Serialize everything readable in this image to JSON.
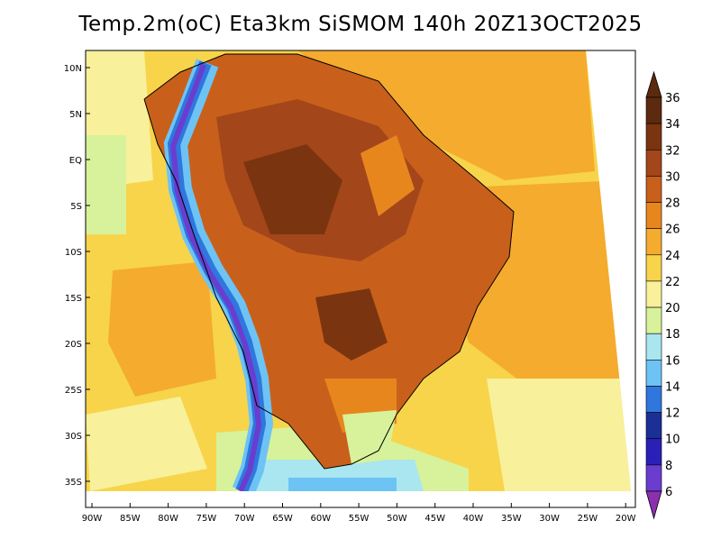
{
  "title": "Temp.2m(oC) Eta3km SiSMOM 140h 20Z13OCT2025",
  "x_ticks": [
    "90W",
    "85W",
    "80W",
    "75W",
    "70W",
    "65W",
    "60W",
    "55W",
    "50W",
    "45W",
    "40W",
    "35W",
    "30W",
    "25W",
    "20W"
  ],
  "y_ticks": [
    "10N",
    "5N",
    "EQ",
    "5S",
    "10S",
    "15S",
    "20S",
    "25S",
    "30S",
    "35S"
  ],
  "colorbar": {
    "labels": [
      "36",
      "34",
      "32",
      "30",
      "28",
      "26",
      "24",
      "22",
      "20",
      "18",
      "16",
      "14",
      "12",
      "10",
      "8",
      "6"
    ],
    "colors": [
      "#5c2a0e",
      "#7a3510",
      "#a3461a",
      "#c8601c",
      "#e8861e",
      "#f5ab2e",
      "#f7d44a",
      "#f8f09a",
      "#d7f29a",
      "#a9e6f0",
      "#6ec3f5",
      "#2f77dd",
      "#1b2f96",
      "#2a20b8",
      "#6a3dcf",
      "#8e2fb0"
    ]
  }
}
